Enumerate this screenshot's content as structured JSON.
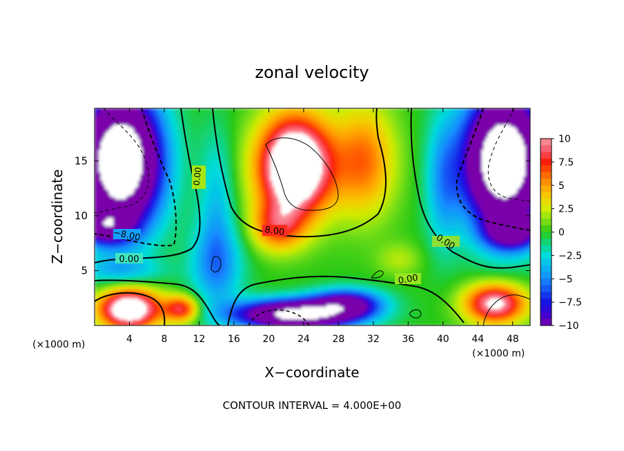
{
  "chart_data": {
    "type": "heatmap",
    "title": "zonal velocity",
    "xlabel": "X−coordinate",
    "ylabel": "Z−coordinate",
    "x_units": "(×1000 m)",
    "y_units": "(×1000 m)",
    "xlim": [
      0,
      50
    ],
    "ylim": [
      0,
      19.8
    ],
    "x_ticks": [
      4,
      8,
      12,
      16,
      20,
      24,
      28,
      32,
      36,
      40,
      44,
      48
    ],
    "y_ticks": [
      5,
      10,
      15
    ],
    "colorbar": {
      "ticks": [
        "10",
        "7.5",
        "5",
        "2.5",
        "0",
        "−2.5",
        "−5",
        "−7.5",
        "−10"
      ],
      "range": [
        -10,
        10
      ],
      "saturated_color": "#ffffff"
    },
    "contour_labels": [
      "8.00",
      "0.00",
      "−8.00",
      "0.00",
      "0.00",
      "0.00"
    ],
    "footer": "CONTOUR INTERVAL = 4.000E+00"
  }
}
